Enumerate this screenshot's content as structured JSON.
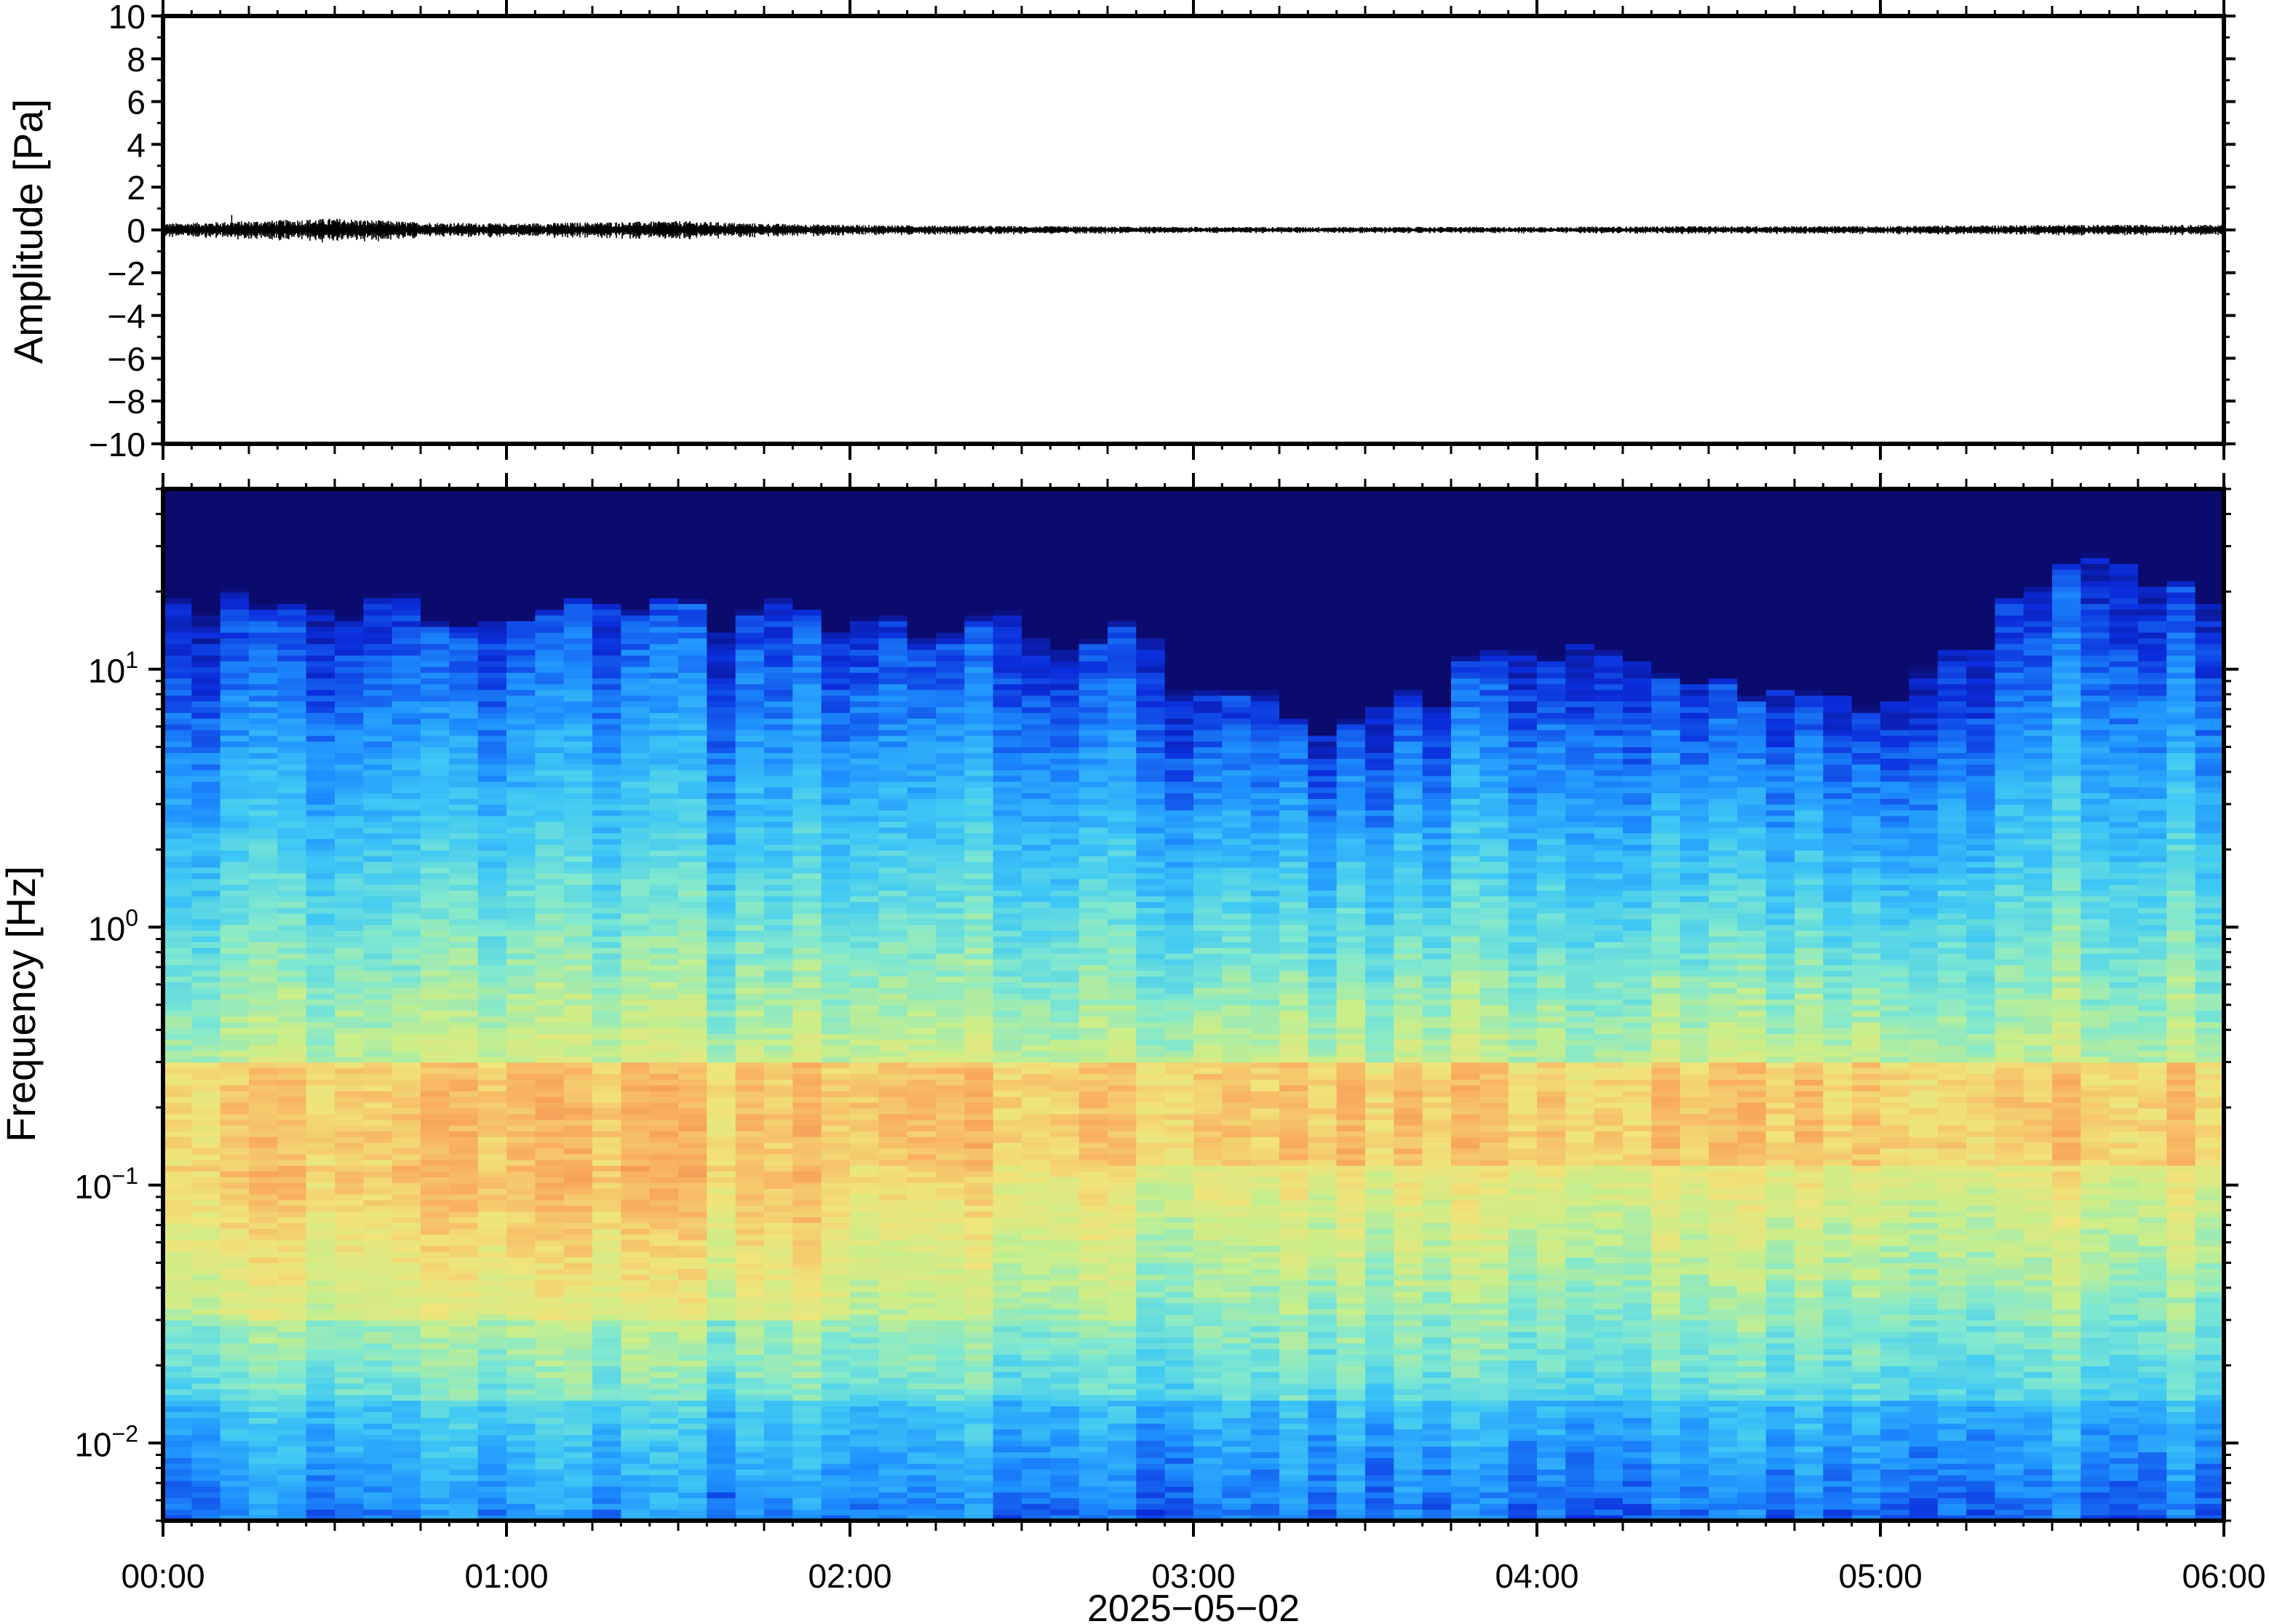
{
  "chart_data": [
    {
      "type": "line",
      "title": "",
      "ylabel": "Amplitude [Pa]",
      "xlabel": "",
      "ylim": [
        -10,
        10
      ],
      "yticks": [
        10,
        8,
        6,
        4,
        2,
        0,
        -2,
        -4,
        -6,
        -8,
        -10
      ],
      "ytick_labels": [
        "10",
        "8",
        "6",
        "4",
        "2",
        "0",
        "−2",
        "−4",
        "−6",
        "−8",
        "−10"
      ],
      "xlim": [
        "00:00",
        "06:00"
      ],
      "series": [
        {
          "color": "#000000",
          "x_hours": [
            0,
            0.25,
            0.5,
            0.75,
            1.0,
            1.25,
            1.5,
            1.75,
            2.0,
            2.5,
            3.0,
            3.5,
            4.0,
            4.5,
            5.0,
            5.5,
            6.0
          ],
          "envelope_pa": [
            0.25,
            0.35,
            0.45,
            0.3,
            0.25,
            0.3,
            0.35,
            0.25,
            0.2,
            0.15,
            0.12,
            0.12,
            0.12,
            0.15,
            0.15,
            0.2,
            0.2
          ],
          "peak_pa": {
            "x_hours": 0.2,
            "value": 0.7
          }
        }
      ]
    },
    {
      "type": "heatmap",
      "title": "",
      "ylabel": "Frequency [Hz]",
      "xlabel": "2025−05−02",
      "yscale": "log",
      "ylim_hz": [
        0.005,
        50
      ],
      "yticks": [
        {
          "base": "10",
          "exp": "1",
          "value": 10
        },
        {
          "base": "10",
          "exp": "0",
          "value": 1
        },
        {
          "base": "10",
          "exp": "−1",
          "value": 0.1
        },
        {
          "base": "10",
          "exp": "−2",
          "value": 0.01
        }
      ],
      "xticks": [
        "00:00",
        "01:00",
        "02:00",
        "03:00",
        "04:00",
        "05:00",
        "06:00"
      ],
      "xlim_hours": [
        0,
        6
      ],
      "colormap": [
        "#0b0b6e",
        "#0b2ddc",
        "#1e90ff",
        "#3ec8f5",
        "#7fe8d0",
        "#c9ee8a",
        "#f0e47a",
        "#f9b060",
        "#f08a4a"
      ],
      "columns": 72,
      "upper_cutoff_hz_by_hour": {
        "hours": [
          0,
          0.5,
          1,
          1.5,
          2,
          2.5,
          2.8,
          3,
          3.5,
          4,
          4.3,
          4.8,
          5,
          5.3,
          5.6,
          6
        ],
        "hz": [
          18,
          17,
          16,
          17,
          15,
          14,
          14,
          8,
          6,
          12,
          10,
          8,
          7,
          14,
          25,
          20
        ]
      },
      "notes": [
        "microseism_band_hz_peak: 0.18",
        "strong_low_frequency_energy_hours_0_to_2: 0.04-0.08 Hz"
      ]
    }
  ]
}
